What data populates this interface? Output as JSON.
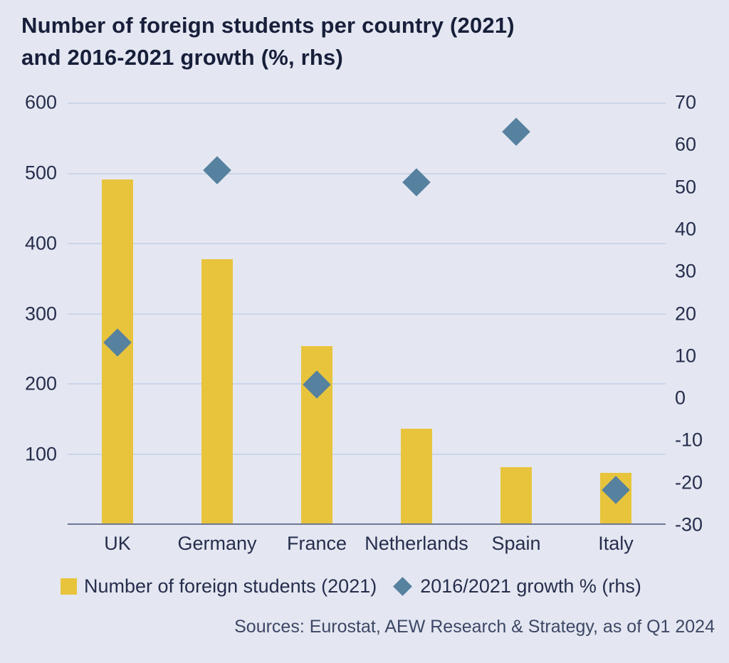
{
  "chart_data": {
    "type": "bar",
    "title": "Number of foreign students per country (2021) and 2016-2021 growth (%, rhs)",
    "title_lines": [
      "Number of foreign students per country (2021)",
      "and 2016-2021 growth (%, rhs)"
    ],
    "categories": [
      "UK",
      "Germany",
      "France",
      "Netherlands",
      "Spain",
      "Italy"
    ],
    "series": [
      {
        "name": "Number of foreign students (2021)",
        "type": "bar",
        "axis": "left",
        "color": "#e8c43c",
        "values": [
          490,
          377,
          253,
          135,
          80,
          72
        ]
      },
      {
        "name": "2016/2021 growth % (rhs)",
        "type": "scatter-diamond",
        "axis": "right",
        "color": "#56819f",
        "values": [
          13,
          54,
          3,
          51,
          63,
          -22
        ]
      }
    ],
    "left_axis": {
      "min": 0,
      "max": 600,
      "ticks": [
        600,
        500,
        400,
        300,
        200,
        100
      ]
    },
    "right_axis": {
      "min": -30,
      "max": 70,
      "ticks": [
        70,
        60,
        50,
        40,
        30,
        20,
        10,
        0,
        -10,
        -20,
        -30
      ]
    },
    "grid": true,
    "legend_position": "bottom",
    "background_color": "#e4e7f1",
    "source": "Sources: Eurostat, AEW Research & Strategy, as of Q1 2024"
  }
}
